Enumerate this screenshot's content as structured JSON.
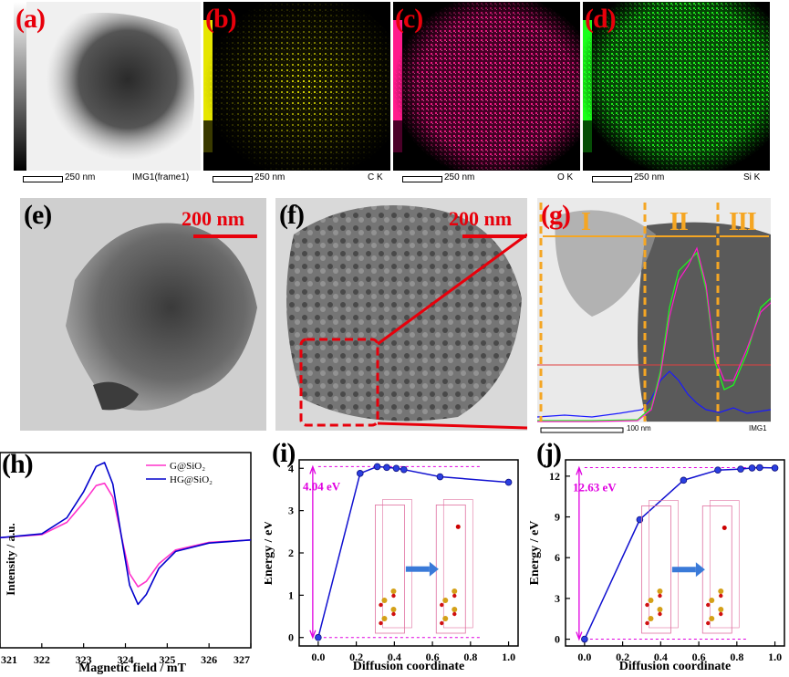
{
  "panels": {
    "a": {
      "label": "(a)",
      "scale": "250 nm",
      "caption": "IMG1(frame1)"
    },
    "b": {
      "label": "(b)",
      "scale": "250 nm",
      "caption": "C K"
    },
    "c": {
      "label": "(c)",
      "scale": "250 nm",
      "caption": "O K"
    },
    "d": {
      "label": "(d)",
      "scale": "250 nm",
      "caption": "Si K"
    },
    "e": {
      "label": "(e)",
      "scale": "200 nm"
    },
    "f": {
      "label": "(f)",
      "scale": "200 nm"
    },
    "g": {
      "label": "(g)",
      "regions": [
        "I",
        "II",
        "III"
      ],
      "scale": "100 nm",
      "caption": "IMG1"
    },
    "h": {
      "label": "(h)"
    },
    "i": {
      "label": "(i)"
    },
    "j": {
      "label": "(j)"
    }
  },
  "colors": {
    "label_red": "#e8000b",
    "C": "#e6e600",
    "O": "#ff1a8c",
    "Si": "#1aff1a",
    "line_blue": "#1010d0",
    "magenta": "#e000e0",
    "orange": "#f5a623"
  },
  "chart_data": [
    {
      "id": "h",
      "type": "line",
      "xlabel": "Magnetic field / mT",
      "ylabel": "Intensity / a.u.",
      "xlim": [
        321,
        327
      ],
      "xticks": [
        "321",
        "322",
        "323",
        "324",
        "325",
        "326",
        "327"
      ],
      "legend": "top-right",
      "series": [
        {
          "name": "G@SiO₂",
          "color": "#ff33cc",
          "x": [
            321,
            322,
            322.6,
            323.0,
            323.3,
            323.5,
            323.7,
            323.9,
            324.1,
            324.3,
            324.5,
            324.8,
            325.2,
            326,
            327
          ],
          "y": [
            0.02,
            0.06,
            0.22,
            0.48,
            0.7,
            0.73,
            0.55,
            0.05,
            -0.45,
            -0.62,
            -0.55,
            -0.32,
            -0.14,
            -0.04,
            -0.01
          ]
        },
        {
          "name": "HG@SiO₂",
          "color": "#0000cc",
          "x": [
            321,
            322,
            322.6,
            323.0,
            323.3,
            323.5,
            323.7,
            323.9,
            324.1,
            324.3,
            324.5,
            324.8,
            325.2,
            326,
            327
          ],
          "y": [
            0.02,
            0.07,
            0.28,
            0.62,
            0.95,
            1.0,
            0.72,
            0.05,
            -0.6,
            -0.85,
            -0.72,
            -0.38,
            -0.16,
            -0.05,
            -0.01
          ]
        }
      ]
    },
    {
      "id": "i",
      "type": "line",
      "xlabel": "Diffusion coordinate",
      "ylabel": "Energy / eV",
      "xlim": [
        -0.1,
        1.05
      ],
      "ylim": [
        -0.2,
        4.2
      ],
      "xticks": [
        "0.0",
        "0.2",
        "0.4",
        "0.6",
        "0.8",
        "1.0"
      ],
      "yticks": [
        "0",
        "1",
        "2",
        "3",
        "4"
      ],
      "annotation": "4.04 eV",
      "series": [
        {
          "name": "",
          "x": [
            0,
            0.22,
            0.31,
            0.36,
            0.41,
            0.45,
            0.64,
            1.0
          ],
          "y": [
            0,
            3.88,
            4.04,
            4.02,
            4.0,
            3.97,
            3.8,
            3.67
          ]
        }
      ]
    },
    {
      "id": "j",
      "type": "line",
      "xlabel": "Diffusion coordinate",
      "ylabel": "Energy / eV",
      "xlim": [
        -0.1,
        1.05
      ],
      "ylim": [
        -0.5,
        13.2
      ],
      "xticks": [
        "0.0",
        "0.2",
        "0.4",
        "0.6",
        "0.8",
        "1.0"
      ],
      "yticks": [
        "0",
        "3",
        "6",
        "9",
        "12"
      ],
      "annotation": "12.63 eV",
      "series": [
        {
          "name": "",
          "x": [
            0,
            0.29,
            0.52,
            0.7,
            0.82,
            0.88,
            0.92,
            1.0
          ],
          "y": [
            0,
            8.8,
            11.7,
            12.45,
            12.52,
            12.6,
            12.63,
            12.6
          ]
        }
      ]
    }
  ]
}
